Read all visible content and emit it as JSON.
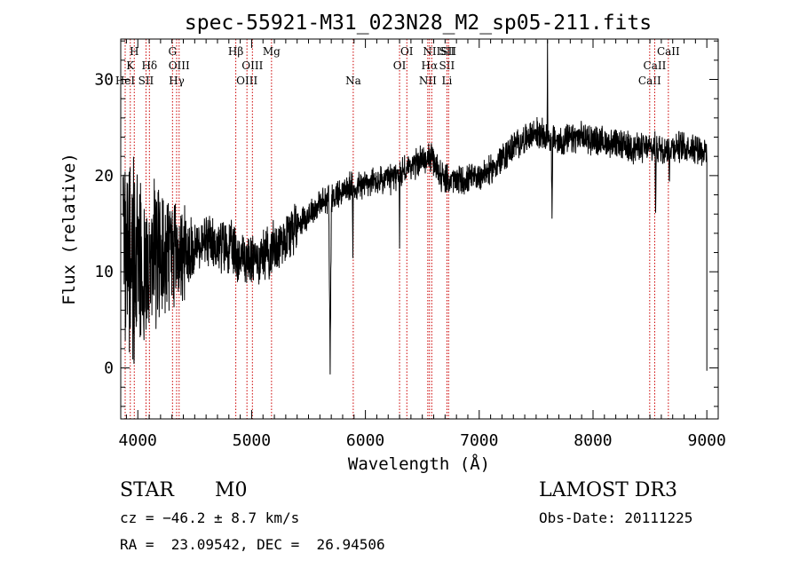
{
  "chart_data": {
    "type": "line",
    "title": "spec-55921-M31_023N28_M2_sp05-211.fits",
    "xlabel": "Wavelength (Å)",
    "ylabel": "Flux (relative)",
    "xlim": [
      3850,
      9100
    ],
    "ylim": [
      -5.3,
      34.2
    ],
    "xticks": [
      4000,
      5000,
      6000,
      7000,
      8000,
      9000
    ],
    "yticks": [
      0,
      10,
      20,
      30
    ],
    "grid": false,
    "line_color": "#000000",
    "marker_color": "#cc0000",
    "continuum": [
      [
        3870,
        13.5
      ],
      [
        4000,
        10.5
      ],
      [
        4200,
        11.5
      ],
      [
        4400,
        12.0
      ],
      [
        4600,
        13.0
      ],
      [
        4800,
        12.5
      ],
      [
        5000,
        11.0
      ],
      [
        5200,
        12.5
      ],
      [
        5400,
        15.0
      ],
      [
        5600,
        17.0
      ],
      [
        5800,
        18.5
      ],
      [
        6000,
        19.2
      ],
      [
        6200,
        19.5
      ],
      [
        6400,
        21.0
      ],
      [
        6560,
        22.0
      ],
      [
        6700,
        19.5
      ],
      [
        6900,
        19.5
      ],
      [
        7100,
        20.5
      ],
      [
        7300,
        23.0
      ],
      [
        7500,
        24.5
      ],
      [
        7700,
        23.5
      ],
      [
        7900,
        24.0
      ],
      [
        8100,
        23.5
      ],
      [
        8300,
        23.0
      ],
      [
        8500,
        22.8
      ],
      [
        8700,
        23.0
      ],
      [
        8900,
        23.0
      ],
      [
        9000,
        22.5
      ]
    ],
    "absorption_features": [
      {
        "center": 5690,
        "depth": 17.0,
        "width": 12
      },
      {
        "center": 5890,
        "depth": 7.0,
        "width": 5
      },
      {
        "center": 6300,
        "depth": 9.0,
        "width": 4
      },
      {
        "center": 7640,
        "depth": 9.0,
        "width": 6
      },
      {
        "center": 8550,
        "depth": 6.0,
        "width": 5
      },
      {
        "center": 8670,
        "depth": 4.0,
        "width": 5
      }
    ],
    "emission_features": [
      {
        "center": 7600,
        "height": 11.0,
        "width": 3
      }
    ],
    "line_markers": [
      {
        "wavelength": 3889,
        "labels": [
          {
            "text": "HeI",
            "row": 3
          }
        ]
      },
      {
        "wavelength": 3934,
        "labels": [
          {
            "text": "K",
            "row": 2
          }
        ]
      },
      {
        "wavelength": 3969,
        "labels": [
          {
            "text": "H",
            "row": 1
          }
        ]
      },
      {
        "wavelength": 4072,
        "labels": [
          {
            "text": "SII",
            "row": 3
          }
        ]
      },
      {
        "wavelength": 4102,
        "labels": [
          {
            "text": "Hδ",
            "row": 2
          }
        ]
      },
      {
        "wavelength": 4305,
        "labels": [
          {
            "text": "G",
            "row": 1
          }
        ]
      },
      {
        "wavelength": 4341,
        "labels": [
          {
            "text": "Hγ",
            "row": 3
          }
        ]
      },
      {
        "wavelength": 4363,
        "labels": [
          {
            "text": "OIII",
            "row": 2
          }
        ]
      },
      {
        "wavelength": 4861,
        "labels": [
          {
            "text": "Hβ",
            "row": 1
          }
        ]
      },
      {
        "wavelength": 4959,
        "labels": [
          {
            "text": "OIII",
            "row": 3
          }
        ]
      },
      {
        "wavelength": 5007,
        "labels": [
          {
            "text": "OIII",
            "row": 2
          }
        ]
      },
      {
        "wavelength": 5175,
        "labels": [
          {
            "text": "Mg",
            "row": 1
          }
        ]
      },
      {
        "wavelength": 5893,
        "labels": [
          {
            "text": "Na",
            "row": 3
          }
        ]
      },
      {
        "wavelength": 6300,
        "labels": [
          {
            "text": "OI",
            "row": 2
          }
        ]
      },
      {
        "wavelength": 6364,
        "labels": [
          {
            "text": "OI",
            "row": 1
          }
        ]
      },
      {
        "wavelength": 6548,
        "labels": [
          {
            "text": "NII",
            "row": 3
          }
        ]
      },
      {
        "wavelength": 6563,
        "labels": [
          {
            "text": "Hα",
            "row": 2
          }
        ]
      },
      {
        "wavelength": 6583,
        "labels": [
          {
            "text": "NII",
            "row": 1
          }
        ]
      },
      {
        "wavelength": 6716,
        "labels": [
          {
            "text": "SII",
            "row": 1
          },
          {
            "text": "SII",
            "row": 2
          },
          {
            "text": "Li",
            "row": 3
          }
        ]
      },
      {
        "wavelength": 6731,
        "labels": [
          {
            "text": "SII",
            "row": 1
          }
        ]
      },
      {
        "wavelength": 8498,
        "labels": [
          {
            "text": "CaII",
            "row": 3
          }
        ]
      },
      {
        "wavelength": 8542,
        "labels": [
          {
            "text": "CaII",
            "row": 2
          }
        ]
      },
      {
        "wavelength": 8662,
        "labels": [
          {
            "text": "CaII",
            "row": 1
          }
        ]
      }
    ]
  },
  "info": {
    "class": "STAR",
    "subclass": "M0",
    "survey": "LAMOST DR3",
    "cz": "cz = −46.2 ± 8.7 km/s",
    "obs_date": "Obs-Date: 20111225",
    "coords": "RA =  23.09542, DEC =  26.94506"
  }
}
